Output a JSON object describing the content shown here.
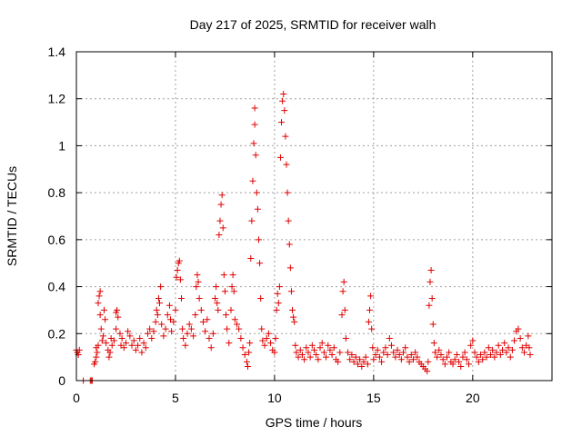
{
  "chart_data": {
    "type": "scatter",
    "title": "Day 217 of 2025, SRMTID for receiver walh",
    "xlabel": "GPS time / hours",
    "ylabel": "SRMTID / TECUs",
    "xlim": [
      0,
      24
    ],
    "ylim": [
      0,
      1.4
    ],
    "xticks": [
      0,
      5,
      10,
      15,
      20
    ],
    "xtick_labels": [
      "0",
      "5",
      "10",
      "15",
      "20"
    ],
    "yticks": [
      0,
      0.2,
      0.4,
      0.6,
      0.8,
      1.0,
      1.2,
      1.4
    ],
    "ytick_labels": [
      "0",
      "0.2",
      "0.4",
      "0.6",
      "0.8",
      "1",
      "1.2",
      "1.4"
    ],
    "grid": true,
    "legend": "none",
    "marker": "plus",
    "color": "#e00000",
    "series": [
      {
        "name": "SRMTID",
        "points": [
          [
            0.0,
            0.13
          ],
          [
            0.05,
            0.12
          ],
          [
            0.1,
            0.11
          ],
          [
            0.15,
            0.13
          ],
          [
            0.35,
            0.0
          ],
          [
            0.7,
            0.0
          ],
          [
            0.75,
            0.0
          ],
          [
            0.8,
            0.0
          ],
          [
            0.9,
            0.07
          ],
          [
            0.95,
            0.08
          ],
          [
            1.0,
            0.1
          ],
          [
            1.0,
            0.14
          ],
          [
            1.05,
            0.12
          ],
          [
            1.1,
            0.15
          ],
          [
            1.1,
            0.33
          ],
          [
            1.15,
            0.36
          ],
          [
            1.2,
            0.38
          ],
          [
            1.2,
            0.28
          ],
          [
            1.25,
            0.22
          ],
          [
            1.3,
            0.17
          ],
          [
            1.35,
            0.19
          ],
          [
            1.4,
            0.3
          ],
          [
            1.45,
            0.26
          ],
          [
            1.5,
            0.16
          ],
          [
            1.6,
            0.13
          ],
          [
            1.65,
            0.1
          ],
          [
            1.7,
            0.12
          ],
          [
            1.75,
            0.18
          ],
          [
            1.8,
            0.15
          ],
          [
            1.9,
            0.17
          ],
          [
            2.0,
            0.22
          ],
          [
            2.0,
            0.29
          ],
          [
            2.05,
            0.3
          ],
          [
            2.1,
            0.27
          ],
          [
            2.2,
            0.2
          ],
          [
            2.25,
            0.15
          ],
          [
            2.3,
            0.18
          ],
          [
            2.4,
            0.14
          ],
          [
            2.5,
            0.16
          ],
          [
            2.6,
            0.21
          ],
          [
            2.7,
            0.19
          ],
          [
            2.8,
            0.15
          ],
          [
            2.9,
            0.17
          ],
          [
            3.0,
            0.13
          ],
          [
            3.1,
            0.15
          ],
          [
            3.2,
            0.18
          ],
          [
            3.3,
            0.12
          ],
          [
            3.4,
            0.16
          ],
          [
            3.5,
            0.14
          ],
          [
            3.6,
            0.2
          ],
          [
            3.7,
            0.22
          ],
          [
            3.8,
            0.18
          ],
          [
            3.9,
            0.21
          ],
          [
            4.0,
            0.25
          ],
          [
            4.05,
            0.3
          ],
          [
            4.1,
            0.28
          ],
          [
            4.15,
            0.35
          ],
          [
            4.2,
            0.33
          ],
          [
            4.25,
            0.4
          ],
          [
            4.3,
            0.24
          ],
          [
            4.4,
            0.19
          ],
          [
            4.5,
            0.22
          ],
          [
            4.6,
            0.28
          ],
          [
            4.7,
            0.32
          ],
          [
            4.75,
            0.26
          ],
          [
            4.8,
            0.21
          ],
          [
            4.9,
            0.25
          ],
          [
            5.0,
            0.3
          ],
          [
            5.05,
            0.44
          ],
          [
            5.1,
            0.47
          ],
          [
            5.15,
            0.5
          ],
          [
            5.2,
            0.51
          ],
          [
            5.25,
            0.43
          ],
          [
            5.3,
            0.35
          ],
          [
            5.35,
            0.22
          ],
          [
            5.4,
            0.18
          ],
          [
            5.5,
            0.15
          ],
          [
            5.6,
            0.2
          ],
          [
            5.7,
            0.24
          ],
          [
            5.8,
            0.22
          ],
          [
            5.9,
            0.19
          ],
          [
            6.0,
            0.28
          ],
          [
            6.05,
            0.4
          ],
          [
            6.1,
            0.45
          ],
          [
            6.15,
            0.42
          ],
          [
            6.2,
            0.35
          ],
          [
            6.3,
            0.3
          ],
          [
            6.4,
            0.25
          ],
          [
            6.5,
            0.21
          ],
          [
            6.6,
            0.26
          ],
          [
            6.7,
            0.18
          ],
          [
            6.8,
            0.14
          ],
          [
            6.9,
            0.2
          ],
          [
            7.0,
            0.35
          ],
          [
            7.05,
            0.4
          ],
          [
            7.1,
            0.33
          ],
          [
            7.15,
            0.3
          ],
          [
            7.2,
            0.62
          ],
          [
            7.25,
            0.68
          ],
          [
            7.3,
            0.75
          ],
          [
            7.35,
            0.79
          ],
          [
            7.4,
            0.65
          ],
          [
            7.45,
            0.45
          ],
          [
            7.5,
            0.38
          ],
          [
            7.55,
            0.28
          ],
          [
            7.6,
            0.22
          ],
          [
            7.7,
            0.16
          ],
          [
            7.8,
            0.3
          ],
          [
            7.85,
            0.4
          ],
          [
            7.9,
            0.45
          ],
          [
            7.95,
            0.38
          ],
          [
            8.0,
            0.26
          ],
          [
            8.1,
            0.24
          ],
          [
            8.2,
            0.22
          ],
          [
            8.3,
            0.18
          ],
          [
            8.4,
            0.14
          ],
          [
            8.5,
            0.11
          ],
          [
            8.6,
            0.08
          ],
          [
            8.65,
            0.06
          ],
          [
            8.7,
            0.12
          ],
          [
            8.75,
            0.16
          ],
          [
            8.8,
            0.52
          ],
          [
            8.85,
            0.68
          ],
          [
            8.9,
            0.85
          ],
          [
            8.95,
            1.01
          ],
          [
            9.0,
            1.09
          ],
          [
            9.0,
            1.16
          ],
          [
            9.05,
            0.96
          ],
          [
            9.1,
            0.8
          ],
          [
            9.15,
            0.73
          ],
          [
            9.2,
            0.6
          ],
          [
            9.25,
            0.5
          ],
          [
            9.3,
            0.35
          ],
          [
            9.35,
            0.22
          ],
          [
            9.4,
            0.17
          ],
          [
            9.5,
            0.15
          ],
          [
            9.6,
            0.18
          ],
          [
            9.7,
            0.2
          ],
          [
            9.8,
            0.16
          ],
          [
            9.9,
            0.13
          ],
          [
            10.0,
            0.12
          ],
          [
            10.05,
            0.18
          ],
          [
            10.1,
            0.3
          ],
          [
            10.15,
            0.37
          ],
          [
            10.2,
            0.33
          ],
          [
            10.25,
            0.4
          ],
          [
            10.3,
            0.95
          ],
          [
            10.35,
            1.1
          ],
          [
            10.4,
            1.19
          ],
          [
            10.45,
            1.22
          ],
          [
            10.5,
            1.15
          ],
          [
            10.55,
            1.04
          ],
          [
            10.6,
            0.92
          ],
          [
            10.65,
            0.8
          ],
          [
            10.7,
            0.68
          ],
          [
            10.75,
            0.58
          ],
          [
            10.8,
            0.48
          ],
          [
            10.85,
            0.38
          ],
          [
            10.9,
            0.3
          ],
          [
            10.95,
            0.27
          ],
          [
            11.0,
            0.25
          ],
          [
            11.05,
            0.15
          ],
          [
            11.1,
            0.12
          ],
          [
            11.2,
            0.1
          ],
          [
            11.3,
            0.13
          ],
          [
            11.4,
            0.11
          ],
          [
            11.5,
            0.09
          ],
          [
            11.6,
            0.14
          ],
          [
            11.7,
            0.12
          ],
          [
            11.8,
            0.1
          ],
          [
            11.9,
            0.15
          ],
          [
            12.0,
            0.13
          ],
          [
            12.1,
            0.11
          ],
          [
            12.2,
            0.09
          ],
          [
            12.3,
            0.14
          ],
          [
            12.4,
            0.16
          ],
          [
            12.5,
            0.12
          ],
          [
            12.6,
            0.1
          ],
          [
            12.7,
            0.15
          ],
          [
            12.8,
            0.13
          ],
          [
            12.9,
            0.11
          ],
          [
            13.0,
            0.14
          ],
          [
            13.1,
            0.09
          ],
          [
            13.2,
            0.08
          ],
          [
            13.3,
            0.12
          ],
          [
            13.4,
            0.28
          ],
          [
            13.45,
            0.38
          ],
          [
            13.5,
            0.42
          ],
          [
            13.55,
            0.3
          ],
          [
            13.6,
            0.18
          ],
          [
            13.7,
            0.12
          ],
          [
            13.8,
            0.09
          ],
          [
            13.9,
            0.11
          ],
          [
            14.0,
            0.08
          ],
          [
            14.1,
            0.1
          ],
          [
            14.2,
            0.07
          ],
          [
            14.3,
            0.09
          ],
          [
            14.4,
            0.06
          ],
          [
            14.5,
            0.08
          ],
          [
            14.6,
            0.1
          ],
          [
            14.7,
            0.07
          ],
          [
            14.75,
            0.25
          ],
          [
            14.8,
            0.3
          ],
          [
            14.85,
            0.36
          ],
          [
            14.9,
            0.22
          ],
          [
            14.95,
            0.14
          ],
          [
            15.0,
            0.09
          ],
          [
            15.1,
            0.11
          ],
          [
            15.2,
            0.13
          ],
          [
            15.3,
            0.1
          ],
          [
            15.4,
            0.08
          ],
          [
            15.5,
            0.12
          ],
          [
            15.6,
            0.14
          ],
          [
            15.7,
            0.11
          ],
          [
            15.8,
            0.18
          ],
          [
            15.9,
            0.15
          ],
          [
            16.0,
            0.12
          ],
          [
            16.1,
            0.1
          ],
          [
            16.2,
            0.13
          ],
          [
            16.3,
            0.11
          ],
          [
            16.4,
            0.09
          ],
          [
            16.5,
            0.12
          ],
          [
            16.6,
            0.14
          ],
          [
            16.7,
            0.1
          ],
          [
            16.8,
            0.08
          ],
          [
            16.9,
            0.11
          ],
          [
            17.0,
            0.09
          ],
          [
            17.1,
            0.12
          ],
          [
            17.2,
            0.1
          ],
          [
            17.3,
            0.08
          ],
          [
            17.4,
            0.07
          ],
          [
            17.5,
            0.06
          ],
          [
            17.6,
            0.05
          ],
          [
            17.7,
            0.04
          ],
          [
            17.75,
            0.08
          ],
          [
            17.8,
            0.32
          ],
          [
            17.85,
            0.42
          ],
          [
            17.9,
            0.47
          ],
          [
            17.95,
            0.35
          ],
          [
            18.0,
            0.24
          ],
          [
            18.05,
            0.16
          ],
          [
            18.1,
            0.12
          ],
          [
            18.2,
            0.1
          ],
          [
            18.3,
            0.13
          ],
          [
            18.4,
            0.11
          ],
          [
            18.5,
            0.09
          ],
          [
            18.6,
            0.07
          ],
          [
            18.7,
            0.1
          ],
          [
            18.8,
            0.12
          ],
          [
            18.9,
            0.08
          ],
          [
            19.0,
            0.07
          ],
          [
            19.1,
            0.09
          ],
          [
            19.2,
            0.11
          ],
          [
            19.3,
            0.08
          ],
          [
            19.4,
            0.06
          ],
          [
            19.5,
            0.1
          ],
          [
            19.6,
            0.12
          ],
          [
            19.7,
            0.09
          ],
          [
            19.8,
            0.07
          ],
          [
            19.9,
            0.15
          ],
          [
            20.0,
            0.17
          ],
          [
            20.1,
            0.12
          ],
          [
            20.2,
            0.1
          ],
          [
            20.3,
            0.08
          ],
          [
            20.4,
            0.11
          ],
          [
            20.5,
            0.09
          ],
          [
            20.6,
            0.12
          ],
          [
            20.7,
            0.1
          ],
          [
            20.8,
            0.14
          ],
          [
            20.9,
            0.11
          ],
          [
            21.0,
            0.13
          ],
          [
            21.1,
            0.1
          ],
          [
            21.2,
            0.12
          ],
          [
            21.3,
            0.15
          ],
          [
            21.4,
            0.11
          ],
          [
            21.5,
            0.13
          ],
          [
            21.6,
            0.16
          ],
          [
            21.7,
            0.12
          ],
          [
            21.8,
            0.14
          ],
          [
            21.9,
            0.1
          ],
          [
            22.0,
            0.13
          ],
          [
            22.1,
            0.17
          ],
          [
            22.2,
            0.21
          ],
          [
            22.3,
            0.22
          ],
          [
            22.4,
            0.18
          ],
          [
            22.5,
            0.14
          ],
          [
            22.6,
            0.12
          ],
          [
            22.7,
            0.15
          ],
          [
            22.8,
            0.19
          ],
          [
            22.85,
            0.14
          ],
          [
            22.9,
            0.11
          ]
        ]
      }
    ]
  }
}
